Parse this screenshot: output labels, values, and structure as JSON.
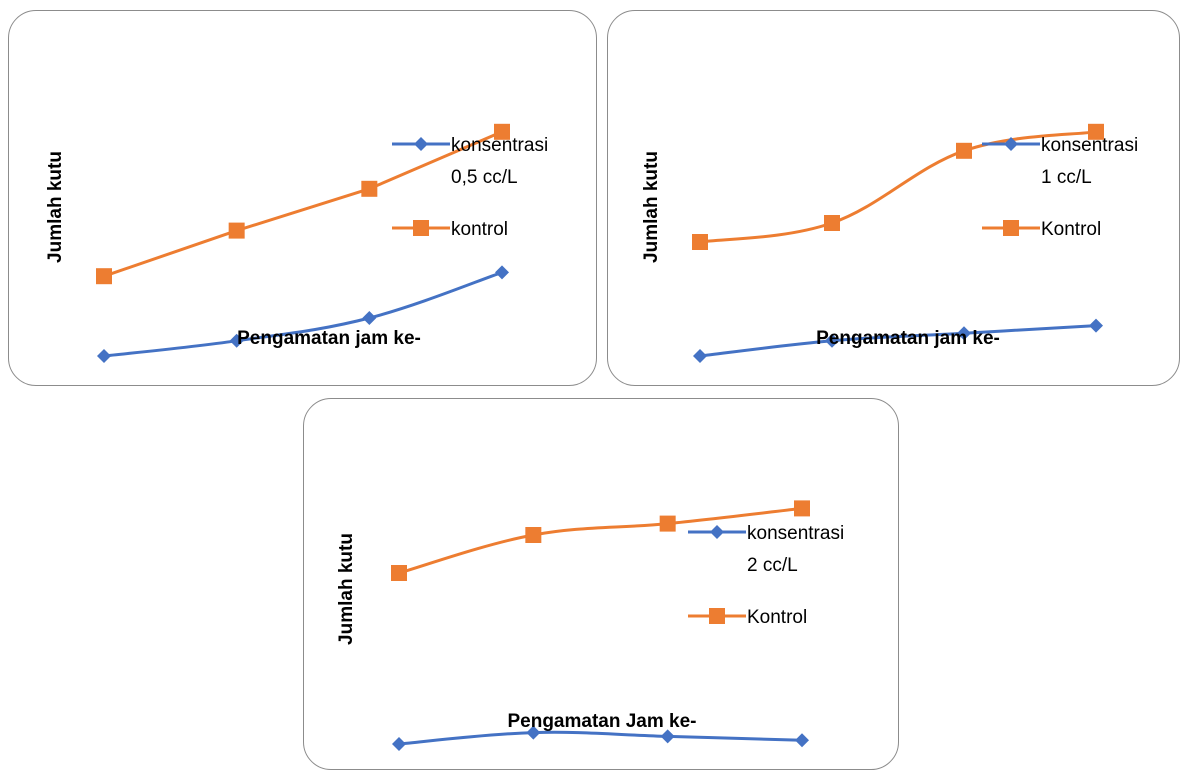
{
  "colors": {
    "konsentrasi": "#4472C4",
    "kontrol": "#ED7D31"
  },
  "chart_data": [
    {
      "type": "line",
      "title": "",
      "xlabel": "Pengamatan jam ke-",
      "ylabel": "Jumlah kutu",
      "legend_position": "right",
      "grid": false,
      "x": [
        1,
        2,
        3,
        4
      ],
      "ylim": [
        0,
        7.5
      ],
      "series": [
        {
          "name": "konsentrasi 0,5 cc/L",
          "name_lines": [
            "konsentrasi",
            "0,5 cc/L"
          ],
          "marker": "diamond",
          "color": "#4472C4",
          "smooth": true,
          "values": [
            0,
            0.4,
            1.0,
            2.2
          ]
        },
        {
          "name": "kontrol",
          "name_lines": [
            "kontrol"
          ],
          "marker": "square",
          "color": "#ED7D31",
          "smooth": false,
          "values": [
            2.1,
            3.3,
            4.4,
            5.9
          ]
        }
      ]
    },
    {
      "type": "line",
      "title": "",
      "xlabel": "Pengamatan jam ke-",
      "ylabel": "Jumlah kutu",
      "legend_position": "right",
      "grid": false,
      "x": [
        1,
        2,
        3,
        4
      ],
      "ylim": [
        0,
        7.5
      ],
      "series": [
        {
          "name": "konsentrasi 1 cc/L",
          "name_lines": [
            "konsentrasi",
            "1 cc/L"
          ],
          "marker": "diamond",
          "color": "#4472C4",
          "smooth": true,
          "values": [
            0,
            0.4,
            0.6,
            0.8
          ]
        },
        {
          "name": "Kontrol",
          "name_lines": [
            "Kontrol"
          ],
          "marker": "square",
          "color": "#ED7D31",
          "smooth": true,
          "values": [
            3.0,
            3.5,
            5.4,
            5.9
          ]
        }
      ]
    },
    {
      "type": "line",
      "title": "",
      "xlabel": "Pengamatan Jam ke-",
      "ylabel": "Jumlah kutu",
      "legend_position": "right",
      "grid": false,
      "x": [
        1,
        2,
        3,
        4
      ],
      "ylim": [
        0,
        7.5
      ],
      "series": [
        {
          "name": "konsentrasi 2 cc/L",
          "name_lines": [
            "konsentrasi",
            "2 cc/L"
          ],
          "marker": "diamond",
          "color": "#4472C4",
          "smooth": true,
          "values": [
            0,
            0.3,
            0.2,
            0.1
          ]
        },
        {
          "name": "Kontrol",
          "name_lines": [
            "Kontrol"
          ],
          "marker": "square",
          "color": "#ED7D31",
          "smooth": true,
          "values": [
            4.5,
            5.5,
            5.8,
            6.2
          ]
        }
      ]
    }
  ]
}
